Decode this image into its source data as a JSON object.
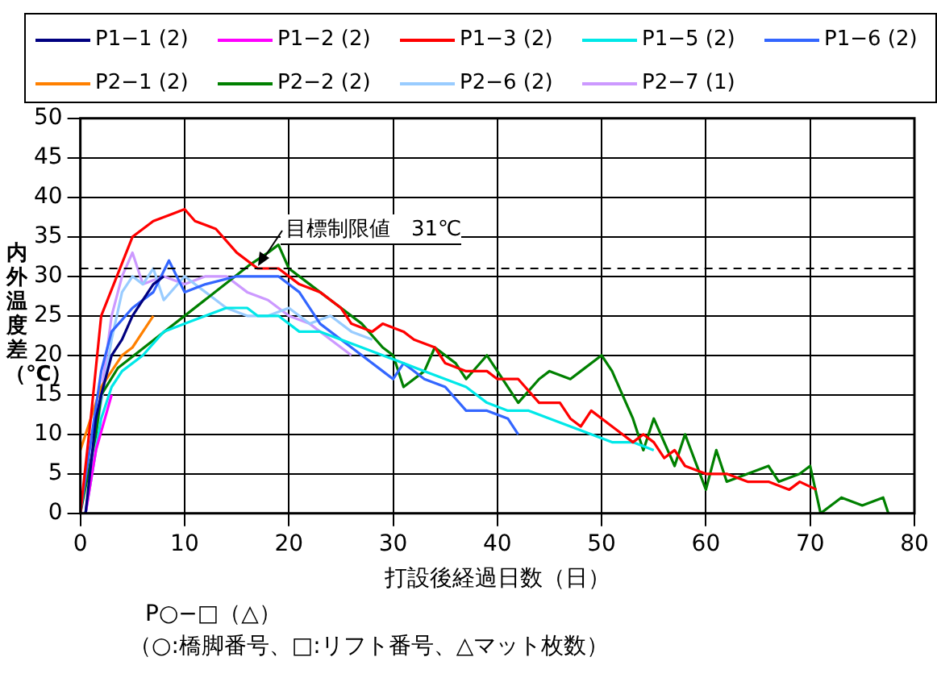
{
  "chart_data": {
    "type": "line",
    "xlabel": "打設後経過日数（日）",
    "ylabel": "内外温度差（℃）",
    "xlim": [
      0,
      80
    ],
    "xticks": [
      0,
      10,
      20,
      30,
      40,
      50,
      60,
      70,
      80
    ],
    "ylim": [
      0,
      50
    ],
    "yticks": [
      0,
      5,
      10,
      15,
      20,
      25,
      30,
      35,
      40,
      45,
      50
    ],
    "grid": true,
    "legend": "top",
    "marker": "none",
    "line_style": "solid",
    "ref_lines": [
      {
        "axis": "y",
        "value": 31,
        "label": "目標制限値　31℃",
        "line_style": "dashed",
        "color": "#000000"
      }
    ],
    "annotations": [
      "P○−□（△）",
      "（○:橋脚番号、□:リフト番号、△マット枚数）"
    ],
    "series": [
      {
        "name": "P1−1 (2)",
        "color": "#000080",
        "x": [
          0.5,
          1.5,
          2,
          3,
          4,
          5,
          6,
          7,
          8
        ],
        "values": [
          0,
          12,
          15,
          20,
          22,
          25,
          27,
          29,
          30
        ]
      },
      {
        "name": "P1−2 (2)",
        "color": "#ff00ff",
        "x": [
          0.5,
          1.5,
          3
        ],
        "values": [
          0,
          8,
          15
        ]
      },
      {
        "name": "P1−3 (2)",
        "color": "#ff0000",
        "x": [
          0,
          1,
          2,
          3.5,
          5,
          7,
          9,
          10,
          11,
          13,
          15,
          17,
          19,
          21,
          23,
          25,
          26,
          28,
          29,
          31,
          32,
          34,
          35,
          37,
          39,
          40,
          42,
          44,
          46,
          47,
          48,
          49,
          51,
          52,
          53,
          54,
          55,
          56,
          57,
          58,
          60,
          62,
          64,
          66,
          68,
          69,
          70.6
        ],
        "values": [
          0,
          12,
          25,
          30,
          35,
          37,
          38,
          38.5,
          37,
          36,
          33,
          31,
          31,
          29,
          28,
          26,
          24,
          23,
          24,
          23,
          22,
          21,
          19,
          18,
          18,
          17,
          17,
          14,
          14,
          12,
          11,
          13,
          11,
          10,
          9,
          10,
          9,
          7,
          8,
          6,
          5,
          5,
          4,
          4,
          3,
          4,
          3
        ]
      },
      {
        "name": "P1−5 (2)",
        "color": "#00e8e8",
        "x": [
          0.5,
          2,
          3,
          4,
          6,
          8,
          10,
          12,
          14,
          16,
          17,
          19,
          21,
          23,
          25,
          27,
          29,
          31,
          33,
          35,
          37,
          39,
          41,
          43,
          45,
          47,
          49,
          51,
          53,
          55
        ],
        "values": [
          0,
          12,
          16,
          18,
          20,
          23,
          24,
          25,
          26,
          26,
          25,
          25,
          23,
          23,
          22,
          21,
          20,
          19,
          18,
          17,
          16,
          14,
          13,
          13,
          12,
          11,
          10,
          9,
          9,
          8
        ]
      },
      {
        "name": "P1−6 (2)",
        "color": "#3366ff",
        "x": [
          0,
          2,
          3,
          5,
          7,
          8.5,
          10,
          12,
          15,
          17,
          19,
          21,
          23,
          25,
          27,
          29,
          30,
          31,
          33,
          35,
          37,
          39,
          41,
          42
        ],
        "values": [
          0,
          18,
          23,
          26,
          28,
          32,
          28,
          29,
          30,
          30,
          30,
          28,
          24,
          22,
          20,
          18,
          17,
          19,
          17,
          16,
          13,
          13,
          12,
          10
        ]
      },
      {
        "name": "P2−1 (2)",
        "color": "#ff8000",
        "x": [
          0,
          1,
          2,
          3,
          4,
          5,
          6.5,
          7
        ],
        "values": [
          8,
          12,
          16,
          18,
          20,
          21,
          24,
          25
        ]
      },
      {
        "name": "P2−2 (2)",
        "color": "#008000",
        "x": [
          0,
          1.5,
          2,
          3.6,
          16.3,
          18,
          19,
          20,
          22,
          24,
          25,
          27,
          29,
          30,
          31,
          33,
          34,
          36,
          37,
          39,
          40,
          42,
          44,
          45,
          47,
          48,
          50,
          51,
          52,
          53,
          54,
          55,
          57,
          58,
          60,
          61,
          62,
          64,
          66,
          67,
          69,
          70,
          71,
          73,
          75,
          77,
          77.5
        ],
        "values": [
          0,
          10,
          15,
          18.4,
          31.5,
          33,
          34,
          31,
          29,
          27,
          26,
          24,
          21,
          20,
          16,
          18,
          21,
          19,
          17,
          20,
          18,
          14,
          17,
          18,
          17,
          18,
          20,
          18,
          15,
          12,
          8,
          12,
          6,
          10,
          3,
          8,
          4,
          5,
          6,
          4,
          5,
          6,
          0,
          2,
          1,
          2,
          0
        ]
      },
      {
        "name": "P2−6 (2)",
        "color": "#99ccff",
        "x": [
          0.5,
          1.5,
          2.5,
          3,
          4,
          5,
          6,
          7,
          8,
          10,
          12,
          14,
          16,
          18,
          20,
          22,
          24,
          26,
          28
        ],
        "values": [
          0,
          10,
          18,
          22,
          28,
          30,
          29,
          31,
          27,
          30,
          28,
          26,
          25,
          25,
          26,
          24,
          25,
          23,
          22
        ]
      },
      {
        "name": "P2−7 (1)",
        "color": "#cc99ff",
        "x": [
          0.5,
          2,
          3,
          4,
          5,
          6,
          8,
          10,
          12,
          14,
          16,
          18,
          20,
          22,
          24,
          26
        ],
        "values": [
          0,
          15,
          25,
          30,
          33,
          29,
          30,
          29,
          30,
          30,
          28,
          27,
          25,
          24,
          22,
          20
        ]
      }
    ]
  }
}
